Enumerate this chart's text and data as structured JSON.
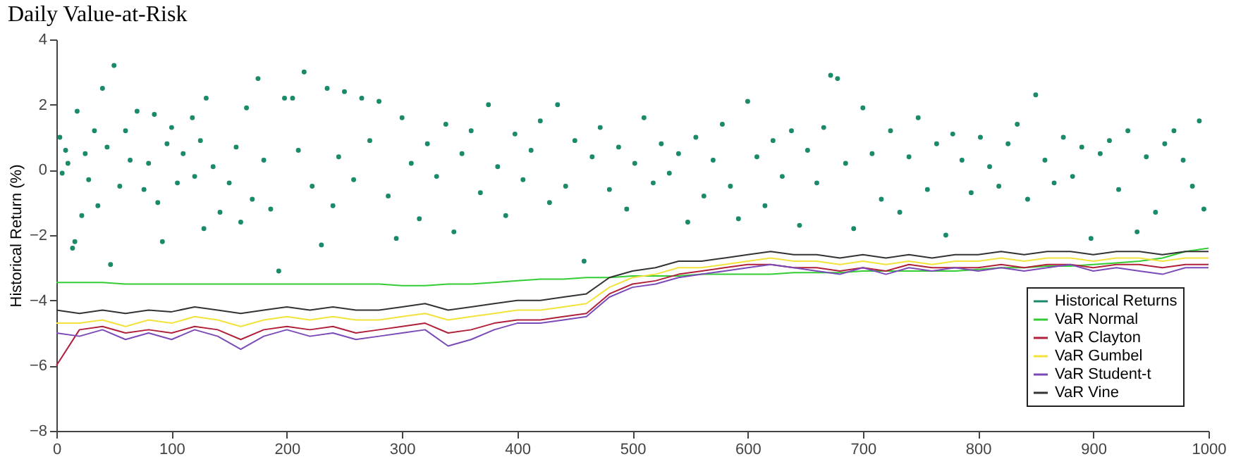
{
  "chart_data": {
    "type": "line",
    "title": "Daily Value-at-Risk",
    "ylabel": "Historical Return (%)",
    "xlim": [
      0,
      1000
    ],
    "xticks": [
      0,
      100,
      200,
      300,
      400,
      500,
      600,
      700,
      800,
      900,
      1000
    ],
    "ylim": [
      -8,
      4
    ],
    "yticks": [
      -8,
      -6,
      -4,
      -2,
      0,
      2,
      4
    ],
    "grid": false,
    "legend": "bottom right",
    "line_style": "solid",
    "x": [
      0,
      20,
      40,
      60,
      80,
      100,
      120,
      140,
      160,
      180,
      200,
      220,
      240,
      260,
      280,
      300,
      320,
      340,
      360,
      380,
      400,
      420,
      440,
      460,
      480,
      500,
      520,
      540,
      560,
      580,
      600,
      620,
      640,
      660,
      680,
      700,
      720,
      740,
      760,
      780,
      800,
      820,
      840,
      860,
      880,
      900,
      920,
      940,
      960,
      980,
      1000
    ],
    "series": [
      {
        "name": "Historical Returns",
        "type": "scatter",
        "marker": "circle",
        "color": "#1a8a6a",
        "x": [
          3,
          5,
          8,
          10,
          14,
          16,
          18,
          22,
          25,
          28,
          33,
          36,
          40,
          44,
          47,
          50,
          55,
          60,
          64,
          70,
          76,
          80,
          85,
          88,
          92,
          96,
          100,
          105,
          110,
          118,
          120,
          125,
          128,
          130,
          136,
          142,
          150,
          156,
          160,
          165,
          170,
          175,
          180,
          186,
          193,
          198,
          205,
          210,
          215,
          222,
          230,
          235,
          240,
          245,
          250,
          258,
          265,
          272,
          280,
          288,
          295,
          300,
          308,
          315,
          322,
          330,
          338,
          345,
          352,
          360,
          368,
          375,
          383,
          390,
          398,
          405,
          412,
          420,
          428,
          435,
          442,
          450,
          458,
          465,
          472,
          480,
          488,
          495,
          502,
          510,
          518,
          525,
          532,
          540,
          548,
          555,
          562,
          570,
          578,
          585,
          592,
          600,
          608,
          615,
          622,
          630,
          638,
          645,
          652,
          660,
          666,
          672,
          678,
          685,
          692,
          700,
          708,
          716,
          724,
          732,
          740,
          748,
          756,
          764,
          772,
          778,
          786,
          794,
          802,
          810,
          818,
          826,
          834,
          843,
          850,
          858,
          866,
          874,
          882,
          890,
          898,
          906,
          914,
          922,
          930,
          938,
          946,
          954,
          962,
          970,
          978,
          986,
          992,
          996
        ],
        "values": [
          1.0,
          -0.1,
          0.6,
          0.2,
          -2.4,
          -2.2,
          1.8,
          -1.4,
          0.5,
          -0.3,
          1.2,
          -1.1,
          2.5,
          0.7,
          -2.9,
          3.2,
          -0.5,
          1.2,
          0.3,
          1.8,
          -0.6,
          0.2,
          1.7,
          -1.0,
          -2.2,
          0.8,
          1.3,
          -0.4,
          0.5,
          1.6,
          -0.2,
          0.9,
          -1.8,
          2.2,
          0.1,
          -1.3,
          -0.4,
          0.7,
          -1.6,
          1.9,
          -0.9,
          2.8,
          0.3,
          -1.2,
          -3.1,
          2.2,
          2.2,
          0.6,
          3.0,
          -0.5,
          -2.3,
          2.5,
          -1.1,
          0.4,
          2.4,
          -0.3,
          2.2,
          0.9,
          2.1,
          -0.8,
          -2.1,
          1.6,
          0.2,
          -1.5,
          0.8,
          -0.2,
          1.4,
          -1.9,
          0.5,
          1.2,
          -0.7,
          2.0,
          0.1,
          -1.4,
          1.1,
          -0.3,
          0.6,
          1.5,
          -1.0,
          2.0,
          -0.5,
          0.9,
          -2.8,
          0.4,
          1.3,
          -0.6,
          0.7,
          -1.2,
          0.2,
          1.6,
          -0.4,
          0.8,
          -0.1,
          0.5,
          -1.6,
          1.0,
          -0.8,
          0.3,
          1.4,
          -0.5,
          -1.5,
          2.1,
          0.4,
          -1.1,
          0.9,
          -0.2,
          1.2,
          -1.7,
          0.6,
          -0.4,
          1.3,
          2.9,
          2.8,
          0.2,
          -1.8,
          1.9,
          0.5,
          -0.9,
          1.2,
          -1.3,
          0.4,
          1.6,
          -0.6,
          0.8,
          -2.0,
          1.1,
          0.3,
          -0.7,
          1.0,
          0.1,
          -0.5,
          0.8,
          1.4,
          -0.9,
          2.3,
          0.3,
          -0.4,
          1.0,
          -0.2,
          0.7,
          -2.1,
          0.5,
          0.9,
          -0.6,
          1.2,
          -1.9,
          0.4,
          -1.3,
          0.8,
          1.2,
          0.3,
          -0.5,
          1.5,
          -1.2
        ]
      },
      {
        "name": "VaR Normal",
        "color": "#33cc33",
        "values": [
          -3.45,
          -3.45,
          -3.45,
          -3.5,
          -3.5,
          -3.5,
          -3.5,
          -3.5,
          -3.5,
          -3.5,
          -3.5,
          -3.5,
          -3.5,
          -3.5,
          -3.5,
          -3.55,
          -3.55,
          -3.5,
          -3.5,
          -3.45,
          -3.4,
          -3.35,
          -3.35,
          -3.3,
          -3.3,
          -3.25,
          -3.25,
          -3.25,
          -3.2,
          -3.2,
          -3.2,
          -3.2,
          -3.15,
          -3.15,
          -3.15,
          -3.1,
          -3.1,
          -3.1,
          -3.1,
          -3.1,
          -3.05,
          -3.0,
          -3.0,
          -2.95,
          -2.95,
          -2.9,
          -2.85,
          -2.8,
          -2.7,
          -2.5,
          -2.4
        ]
      },
      {
        "name": "VaR Clayton",
        "color": "#b0203a",
        "values": [
          -6.0,
          -4.9,
          -4.8,
          -5.0,
          -4.9,
          -5.0,
          -4.8,
          -4.9,
          -5.2,
          -4.9,
          -4.8,
          -4.9,
          -4.8,
          -5.0,
          -4.9,
          -4.8,
          -4.7,
          -5.0,
          -4.9,
          -4.7,
          -4.6,
          -4.6,
          -4.5,
          -4.4,
          -3.8,
          -3.5,
          -3.4,
          -3.2,
          -3.1,
          -3.0,
          -2.9,
          -2.9,
          -3.0,
          -3.0,
          -3.1,
          -3.0,
          -3.1,
          -2.9,
          -3.0,
          -3.0,
          -3.0,
          -2.9,
          -3.0,
          -2.9,
          -2.9,
          -3.0,
          -2.9,
          -2.9,
          -3.0,
          -2.9,
          -2.9
        ]
      },
      {
        "name": "VaR Gumbel",
        "color": "#f2e23a",
        "values": [
          -4.7,
          -4.7,
          -4.6,
          -4.8,
          -4.6,
          -4.7,
          -4.5,
          -4.6,
          -4.8,
          -4.6,
          -4.5,
          -4.6,
          -4.5,
          -4.6,
          -4.6,
          -4.5,
          -4.4,
          -4.6,
          -4.5,
          -4.4,
          -4.3,
          -4.3,
          -4.2,
          -4.1,
          -3.6,
          -3.3,
          -3.2,
          -3.0,
          -3.0,
          -2.9,
          -2.8,
          -2.7,
          -2.8,
          -2.8,
          -2.9,
          -2.8,
          -2.9,
          -2.8,
          -2.9,
          -2.8,
          -2.8,
          -2.7,
          -2.8,
          -2.7,
          -2.7,
          -2.8,
          -2.7,
          -2.7,
          -2.8,
          -2.7,
          -2.7
        ]
      },
      {
        "name": "VaR Student-t",
        "color": "#7a4ab8",
        "values": [
          -5.0,
          -5.1,
          -4.9,
          -5.2,
          -5.0,
          -5.2,
          -4.9,
          -5.1,
          -5.5,
          -5.1,
          -4.9,
          -5.1,
          -5.0,
          -5.2,
          -5.1,
          -5.0,
          -4.9,
          -5.4,
          -5.2,
          -4.9,
          -4.7,
          -4.7,
          -4.6,
          -4.5,
          -3.9,
          -3.6,
          -3.5,
          -3.3,
          -3.2,
          -3.1,
          -3.0,
          -2.9,
          -3.0,
          -3.1,
          -3.2,
          -3.0,
          -3.2,
          -3.0,
          -3.1,
          -3.0,
          -3.1,
          -3.0,
          -3.1,
          -3.0,
          -2.9,
          -3.1,
          -3.0,
          -3.1,
          -3.2,
          -3.0,
          -3.0
        ]
      },
      {
        "name": "VaR Vine",
        "color": "#333333",
        "values": [
          -4.3,
          -4.4,
          -4.3,
          -4.4,
          -4.3,
          -4.35,
          -4.2,
          -4.3,
          -4.4,
          -4.3,
          -4.2,
          -4.3,
          -4.2,
          -4.3,
          -4.3,
          -4.2,
          -4.1,
          -4.3,
          -4.2,
          -4.1,
          -4.0,
          -4.0,
          -3.9,
          -3.8,
          -3.3,
          -3.1,
          -3.0,
          -2.8,
          -2.8,
          -2.7,
          -2.6,
          -2.5,
          -2.6,
          -2.6,
          -2.7,
          -2.6,
          -2.7,
          -2.6,
          -2.7,
          -2.6,
          -2.6,
          -2.5,
          -2.6,
          -2.5,
          -2.5,
          -2.6,
          -2.5,
          -2.5,
          -2.6,
          -2.5,
          -2.5
        ]
      }
    ]
  }
}
